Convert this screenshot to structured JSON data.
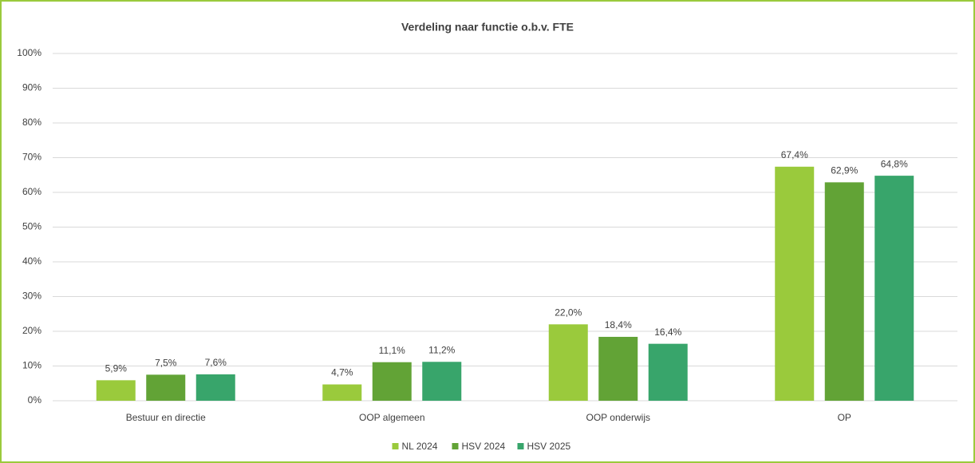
{
  "chart_data": {
    "type": "bar",
    "title": "Verdeling naar functie o.b.v. FTE",
    "categories": [
      "Bestuur en directie",
      "OOP algemeen",
      "OOP onderwijs",
      "OP"
    ],
    "series": [
      {
        "name": "NL 2024",
        "color": "#9aca3c",
        "values": [
          5.9,
          4.7,
          22.0,
          67.4
        ],
        "value_labels": [
          "5,9%",
          "4,7%",
          "22,0%",
          "67,4%"
        ]
      },
      {
        "name": "HSV 2024",
        "color": "#62a336",
        "values": [
          7.5,
          11.1,
          18.4,
          62.9
        ],
        "value_labels": [
          "7,5%",
          "11,1%",
          "18,4%",
          "62,9%"
        ]
      },
      {
        "name": "HSV 2025",
        "color": "#38a56b",
        "values": [
          7.6,
          11.2,
          16.4,
          64.8
        ],
        "value_labels": [
          "7,6%",
          "11,2%",
          "16,4%",
          "64,8%"
        ]
      }
    ],
    "ylim": [
      0,
      100
    ],
    "yticks": [
      {
        "value": 0,
        "label": "0%"
      },
      {
        "value": 10,
        "label": "10%"
      },
      {
        "value": 20,
        "label": "20%"
      },
      {
        "value": 30,
        "label": "30%"
      },
      {
        "value": 40,
        "label": "40%"
      },
      {
        "value": 50,
        "label": "50%"
      },
      {
        "value": 60,
        "label": "60%"
      },
      {
        "value": 70,
        "label": "70%"
      },
      {
        "value": 80,
        "label": "80%"
      },
      {
        "value": 90,
        "label": "90%"
      },
      {
        "value": 100,
        "label": "100%"
      }
    ],
    "grid": true,
    "legend": "bottom"
  }
}
